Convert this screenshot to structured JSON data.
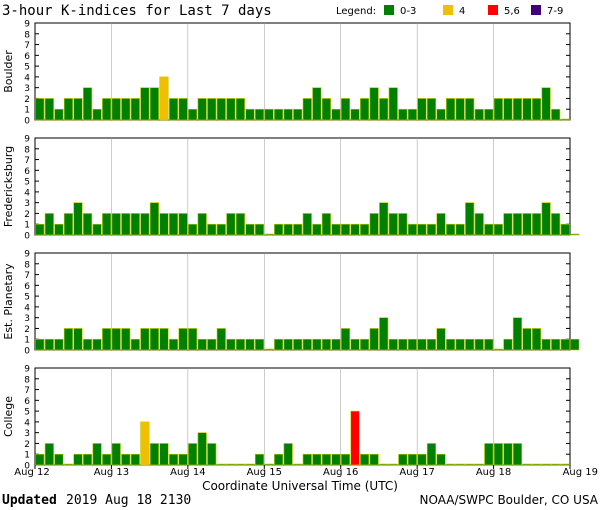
{
  "header": {
    "title": "3-hour K-indices for Last 7 days",
    "legend_label": "Legend:",
    "legend": [
      {
        "label": "0-3",
        "color": "#008000"
      },
      {
        "label": "4",
        "color": "#f0c000"
      },
      {
        "label": "5,6",
        "color": "#ff0000"
      },
      {
        "label": "7-9",
        "color": "#400080"
      }
    ]
  },
  "footer": {
    "updated_label": "Updated",
    "updated_value": "2019 Aug 18 2130",
    "source": "NOAA/SWPC Boulder, CO USA"
  },
  "chart_data": {
    "type": "bar",
    "xlabel": "Coordinate Universal Time (UTC)",
    "x_ticks": [
      "Aug 12",
      "Aug 13",
      "Aug 14",
      "Aug 15",
      "Aug 16",
      "Aug 17",
      "Aug 18",
      "Aug 19"
    ],
    "y_ticks": [
      "0",
      "1",
      "2",
      "3",
      "4",
      "5",
      "6",
      "7",
      "8",
      "9"
    ],
    "ylim": [
      0,
      9
    ],
    "intervals_per_day": 8,
    "panels": [
      {
        "name": "Boulder",
        "values": [
          2,
          2,
          1,
          2,
          2,
          3,
          1,
          2,
          2,
          2,
          2,
          3,
          3,
          4,
          2,
          2,
          1,
          2,
          2,
          2,
          2,
          2,
          1,
          1,
          1,
          1,
          1,
          1,
          2,
          3,
          2,
          1,
          2,
          1,
          2,
          3,
          2,
          3,
          1,
          1,
          2,
          2,
          1,
          2,
          2,
          2,
          1,
          1,
          2,
          2,
          2,
          2,
          2,
          3,
          1,
          0
        ]
      },
      {
        "name": "Fredericksburg",
        "values": [
          1,
          2,
          1,
          2,
          3,
          2,
          1,
          2,
          2,
          2,
          2,
          2,
          3,
          2,
          2,
          2,
          1,
          2,
          1,
          1,
          2,
          2,
          1,
          1,
          0,
          1,
          1,
          1,
          2,
          1,
          2,
          1,
          1,
          1,
          1,
          2,
          3,
          2,
          2,
          1,
          1,
          1,
          2,
          1,
          1,
          3,
          2,
          1,
          1,
          2,
          2,
          2,
          2,
          3,
          2,
          1,
          0
        ]
      },
      {
        "name": "Est. Planetary",
        "values": [
          1,
          1,
          1,
          2,
          2,
          1,
          1,
          2,
          2,
          2,
          1,
          2,
          2,
          2,
          1,
          2,
          2,
          1,
          1,
          2,
          1,
          1,
          1,
          1,
          0,
          1,
          1,
          1,
          1,
          1,
          1,
          1,
          2,
          1,
          1,
          2,
          3,
          1,
          1,
          1,
          1,
          1,
          2,
          1,
          1,
          1,
          1,
          1,
          0,
          1,
          3,
          2,
          2,
          1,
          1,
          1,
          1
        ]
      },
      {
        "name": "College",
        "values": [
          1,
          2,
          1,
          0,
          1,
          1,
          2,
          1,
          2,
          1,
          1,
          4,
          2,
          2,
          1,
          1,
          2,
          3,
          2,
          0,
          0,
          0,
          0,
          1,
          0,
          1,
          2,
          0,
          1,
          1,
          1,
          1,
          1,
          5,
          1,
          1,
          0,
          0,
          1,
          1,
          1,
          2,
          1,
          0,
          0,
          0,
          0,
          2,
          2,
          2,
          2,
          0,
          0,
          0,
          0,
          0
        ]
      }
    ]
  }
}
